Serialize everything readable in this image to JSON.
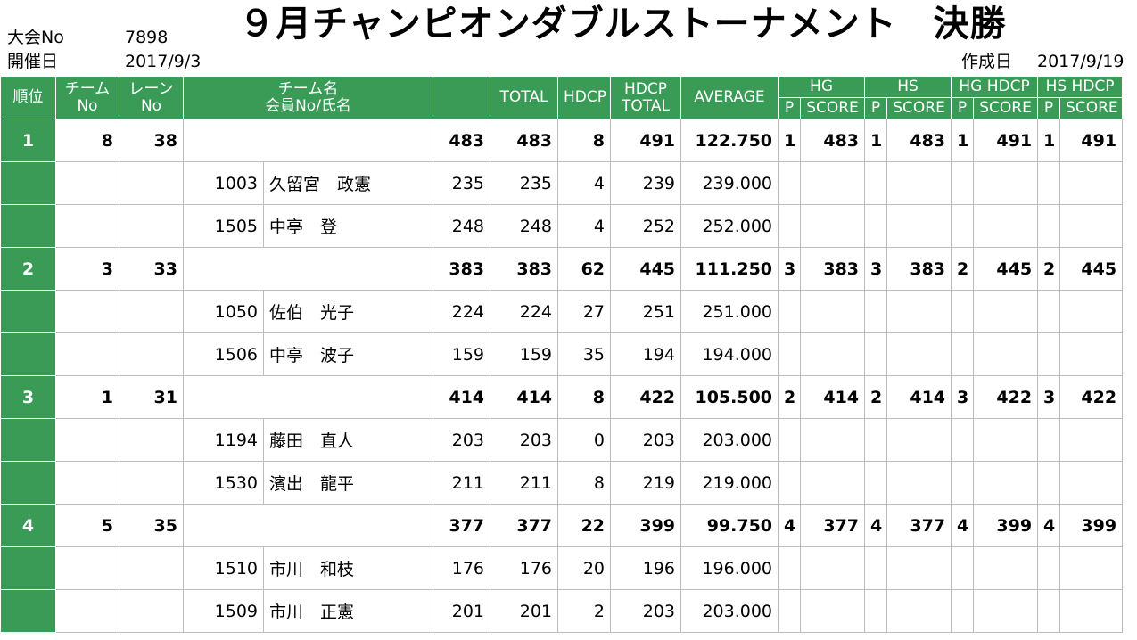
{
  "header": {
    "tournament_no_label": "大会No",
    "tournament_no": "7898",
    "date_label": "開催日",
    "date": "2017/9/3",
    "title": "９月チャンピオンダブルストーナメント　決勝",
    "created_label": "作成日",
    "created_date": "2017/9/19"
  },
  "columns": {
    "rank": "順位",
    "team_no_1": "チーム",
    "team_no_2": "No",
    "lane_no_1": "レーン",
    "lane_no_2": "No",
    "name_1": "チーム名",
    "name_2": "会員No/氏名",
    "total": "TOTAL",
    "hdcp": "HDCP",
    "hdcp_total_1": "HDCP",
    "hdcp_total_2": "TOTAL",
    "average": "AVERAGE",
    "hg": "HG",
    "hs": "HS",
    "hg_hdcp": "HG HDCP",
    "hs_hdcp": "HS HDCP",
    "p": "P",
    "score": "SCORE"
  },
  "teams": [
    {
      "rank": "1",
      "team_no": "8",
      "lane_no": "38",
      "games": "483",
      "total": "483",
      "hdcp": "8",
      "hdcp_total": "491",
      "average": "122.750",
      "hg_p": "1",
      "hg_score": "483",
      "hs_p": "1",
      "hs_score": "483",
      "hgh_p": "1",
      "hgh_score": "491",
      "hsh_p": "1",
      "hsh_score": "491",
      "members": [
        {
          "no": "1003",
          "name": "久留宮　政憲",
          "games": "235",
          "total": "235",
          "hdcp": "4",
          "hdcp_total": "239",
          "average": "239.000"
        },
        {
          "no": "1505",
          "name": "中亭　登",
          "games": "248",
          "total": "248",
          "hdcp": "4",
          "hdcp_total": "252",
          "average": "252.000"
        }
      ]
    },
    {
      "rank": "2",
      "team_no": "3",
      "lane_no": "33",
      "games": "383",
      "total": "383",
      "hdcp": "62",
      "hdcp_total": "445",
      "average": "111.250",
      "hg_p": "3",
      "hg_score": "383",
      "hs_p": "3",
      "hs_score": "383",
      "hgh_p": "2",
      "hgh_score": "445",
      "hsh_p": "2",
      "hsh_score": "445",
      "members": [
        {
          "no": "1050",
          "name": "佐伯　光子",
          "games": "224",
          "total": "224",
          "hdcp": "27",
          "hdcp_total": "251",
          "average": "251.000"
        },
        {
          "no": "1506",
          "name": "中亭　波子",
          "games": "159",
          "total": "159",
          "hdcp": "35",
          "hdcp_total": "194",
          "average": "194.000"
        }
      ]
    },
    {
      "rank": "3",
      "team_no": "1",
      "lane_no": "31",
      "games": "414",
      "total": "414",
      "hdcp": "8",
      "hdcp_total": "422",
      "average": "105.500",
      "hg_p": "2",
      "hg_score": "414",
      "hs_p": "2",
      "hs_score": "414",
      "hgh_p": "3",
      "hgh_score": "422",
      "hsh_p": "3",
      "hsh_score": "422",
      "members": [
        {
          "no": "1194",
          "name": "藤田　直人",
          "games": "203",
          "total": "203",
          "hdcp": "0",
          "hdcp_total": "203",
          "average": "203.000"
        },
        {
          "no": "1530",
          "name": "濱出　龍平",
          "games": "211",
          "total": "211",
          "hdcp": "8",
          "hdcp_total": "219",
          "average": "219.000"
        }
      ]
    },
    {
      "rank": "4",
      "team_no": "5",
      "lane_no": "35",
      "games": "377",
      "total": "377",
      "hdcp": "22",
      "hdcp_total": "399",
      "average": "99.750",
      "hg_p": "4",
      "hg_score": "377",
      "hs_p": "4",
      "hs_score": "377",
      "hgh_p": "4",
      "hgh_score": "399",
      "hsh_p": "4",
      "hsh_score": "399",
      "members": [
        {
          "no": "1510",
          "name": "市川　和枝",
          "games": "176",
          "total": "176",
          "hdcp": "20",
          "hdcp_total": "196",
          "average": "196.000"
        },
        {
          "no": "1509",
          "name": "市川　正憲",
          "games": "201",
          "total": "201",
          "hdcp": "2",
          "hdcp_total": "203",
          "average": "203.000"
        }
      ]
    }
  ]
}
